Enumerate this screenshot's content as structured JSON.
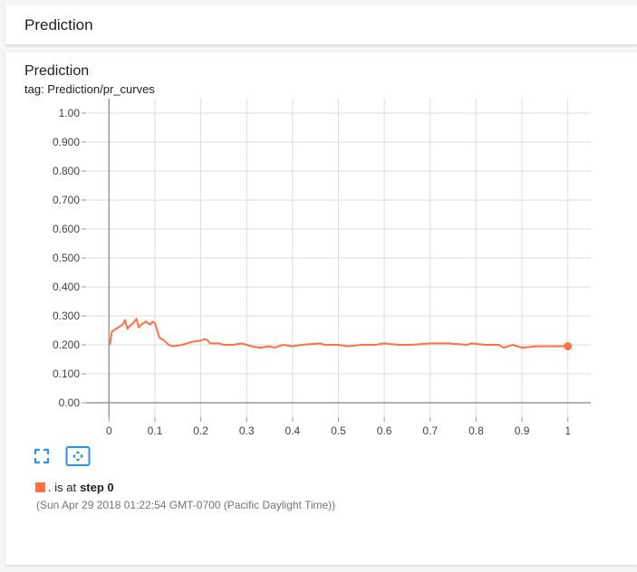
{
  "header": {
    "title": "Prediction"
  },
  "card": {
    "title": "Prediction",
    "tag": "tag: Prediction/pr_curves"
  },
  "colors": {
    "series": "#ff7043",
    "grid": "#dddddd",
    "axis": "#999999"
  },
  "toolbar": {
    "expand_icon": "expand-icon",
    "fit_icon": "fit-domain-icon"
  },
  "legend": {
    "run": ". is at ",
    "step_label": "step 0",
    "timestamp": "(Sun Apr 29 2018 01:22:54 GMT-0700 (Pacific Daylight Time))"
  },
  "chart_data": {
    "type": "line",
    "title": "",
    "xlabel": "",
    "ylabel": "",
    "xlim": [
      -0.05,
      1.05
    ],
    "ylim": [
      -0.05,
      1.05
    ],
    "xticks": [
      0,
      0.1,
      0.2,
      0.3,
      0.4,
      0.5,
      0.6,
      0.7,
      0.8,
      0.9,
      1
    ],
    "xtick_labels": [
      "0",
      "0.1",
      "0.2",
      "0.3",
      "0.4",
      "0.5",
      "0.6",
      "0.7",
      "0.8",
      "0.9",
      "1"
    ],
    "yticks": [
      0,
      0.1,
      0.2,
      0.3,
      0.4,
      0.5,
      0.6,
      0.7,
      0.8,
      0.9,
      1.0
    ],
    "ytick_labels": [
      "0.00",
      "0.100",
      "0.200",
      "0.300",
      "0.400",
      "0.500",
      "0.600",
      "0.700",
      "0.800",
      "0.900",
      "1.00"
    ],
    "grid": true,
    "series": [
      {
        "x": [
          0.002,
          0.006,
          0.015,
          0.025,
          0.03,
          0.035,
          0.04,
          0.045,
          0.05,
          0.055,
          0.06,
          0.065,
          0.07,
          0.075,
          0.08,
          0.085,
          0.09,
          0.095,
          0.1,
          0.105,
          0.11,
          0.12,
          0.13,
          0.14,
          0.16,
          0.18,
          0.2,
          0.21,
          0.215,
          0.22,
          0.24,
          0.25,
          0.27,
          0.29,
          0.3,
          0.31,
          0.33,
          0.35,
          0.36,
          0.38,
          0.4,
          0.42,
          0.46,
          0.47,
          0.5,
          0.52,
          0.55,
          0.58,
          0.6,
          0.63,
          0.66,
          0.7,
          0.74,
          0.78,
          0.79,
          0.82,
          0.85,
          0.86,
          0.88,
          0.9,
          0.93,
          0.96,
          1.0
        ],
        "y": [
          0.2,
          0.245,
          0.255,
          0.265,
          0.27,
          0.285,
          0.255,
          0.265,
          0.27,
          0.28,
          0.29,
          0.26,
          0.27,
          0.275,
          0.28,
          0.275,
          0.27,
          0.28,
          0.275,
          0.25,
          0.225,
          0.215,
          0.2,
          0.195,
          0.2,
          0.21,
          0.215,
          0.22,
          0.215,
          0.205,
          0.205,
          0.2,
          0.2,
          0.205,
          0.2,
          0.195,
          0.19,
          0.195,
          0.19,
          0.2,
          0.195,
          0.2,
          0.205,
          0.2,
          0.2,
          0.195,
          0.2,
          0.2,
          0.205,
          0.2,
          0.2,
          0.205,
          0.205,
          0.2,
          0.205,
          0.2,
          0.2,
          0.19,
          0.2,
          0.19,
          0.195,
          0.195,
          0.195
        ]
      }
    ],
    "marker_point": {
      "x": 1.0,
      "y": 0.195
    }
  }
}
